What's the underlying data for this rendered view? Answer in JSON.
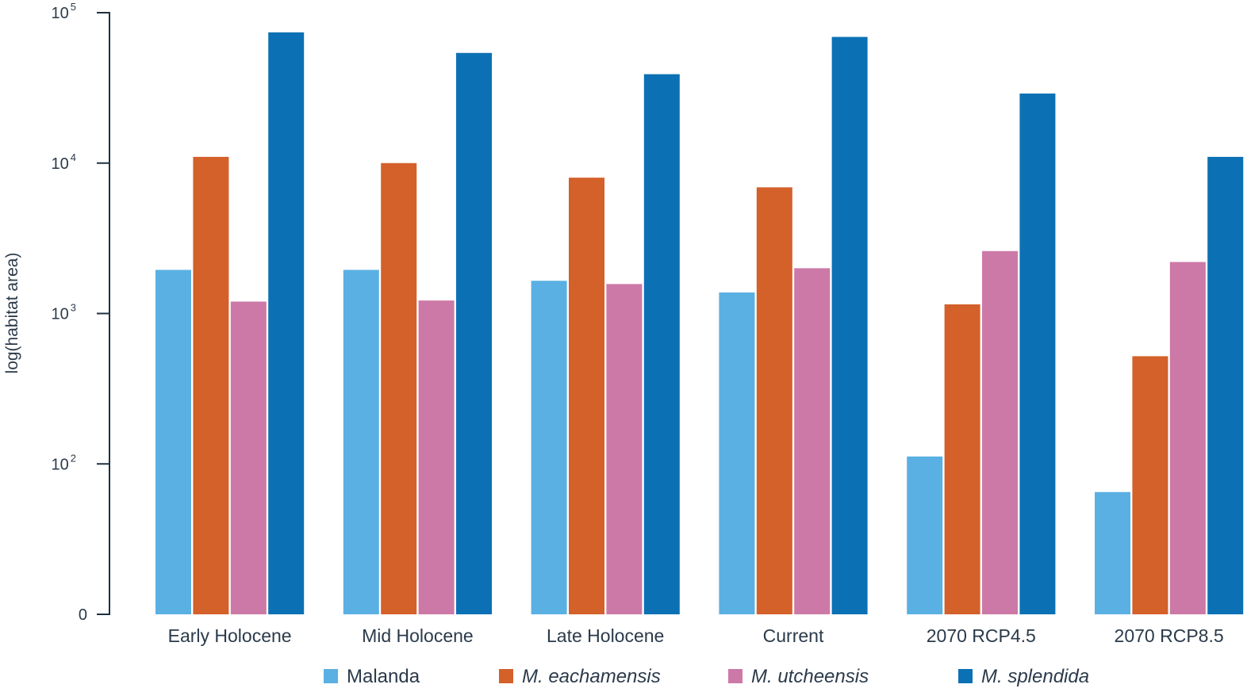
{
  "chart_data": {
    "type": "bar",
    "ylabel": "log(habitat area)",
    "yscale": "log",
    "ylim": [
      10,
      100000
    ],
    "yticks": [
      {
        "value": 10,
        "base": "0",
        "exp": ""
      },
      {
        "value": 100,
        "base": "10",
        "exp": "2"
      },
      {
        "value": 1000,
        "base": "10",
        "exp": "3"
      },
      {
        "value": 10000,
        "base": "10",
        "exp": "4"
      },
      {
        "value": 100000,
        "base": "10",
        "exp": "5"
      }
    ],
    "categories": [
      "Early Holocene",
      "Mid Holocene",
      "Late Holocene",
      "Current",
      "2070 RCP4.5",
      "2070 RCP8.5"
    ],
    "series": [
      {
        "name": "Malanda",
        "italic": false,
        "color": "#5ab0e3",
        "values": [
          1950,
          1950,
          1650,
          1380,
          112,
          65
        ]
      },
      {
        "name": "M. eachamensis",
        "italic": true,
        "color": "#d4602a",
        "values": [
          11000,
          10000,
          8000,
          6900,
          1150,
          520
        ]
      },
      {
        "name": "M. utcheensis",
        "italic": true,
        "color": "#cc79a7",
        "values": [
          1200,
          1220,
          1570,
          2000,
          2600,
          2200
        ]
      },
      {
        "name": "M. splendida",
        "italic": true,
        "color": "#0b71b4",
        "values": [
          74000,
          54000,
          39000,
          69000,
          29000,
          11000
        ]
      }
    ],
    "legend": "bottom",
    "grid": false
  }
}
